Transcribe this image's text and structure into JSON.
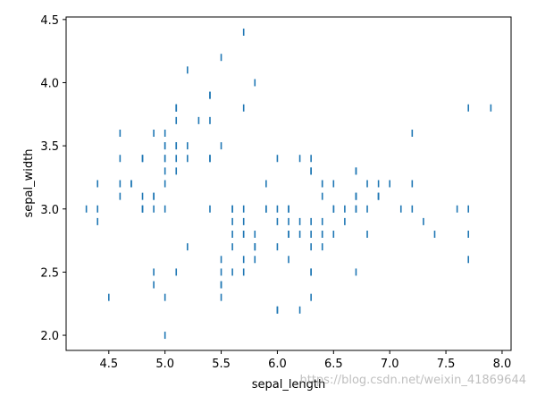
{
  "chart_data": {
    "type": "scatter",
    "marker": "vertical-line",
    "color": "#1f77b4",
    "xlabel": "sepal_length",
    "ylabel": "sepal_width",
    "xlim": [
      4.12,
      8.08
    ],
    "ylim": [
      1.88,
      4.52
    ],
    "xticks": [
      4.5,
      5.0,
      5.5,
      6.0,
      6.5,
      7.0,
      7.5,
      8.0
    ],
    "xtick_labels": [
      "4.5",
      "5.0",
      "5.5",
      "6.0",
      "6.5",
      "7.0",
      "7.5",
      "8.0"
    ],
    "yticks": [
      2.0,
      2.5,
      3.0,
      3.5,
      4.0,
      4.5
    ],
    "ytick_labels": [
      "2.0",
      "2.5",
      "3.0",
      "3.5",
      "4.0",
      "4.5"
    ],
    "grid": false,
    "points": [
      [
        5.1,
        3.5
      ],
      [
        4.9,
        3.0
      ],
      [
        4.7,
        3.2
      ],
      [
        4.6,
        3.1
      ],
      [
        5.0,
        3.6
      ],
      [
        5.4,
        3.9
      ],
      [
        4.6,
        3.4
      ],
      [
        5.0,
        3.4
      ],
      [
        4.4,
        2.9
      ],
      [
        4.9,
        3.1
      ],
      [
        5.4,
        3.7
      ],
      [
        4.8,
        3.4
      ],
      [
        4.8,
        3.0
      ],
      [
        4.3,
        3.0
      ],
      [
        5.8,
        4.0
      ],
      [
        5.7,
        4.4
      ],
      [
        5.4,
        3.9
      ],
      [
        5.1,
        3.5
      ],
      [
        5.7,
        3.8
      ],
      [
        5.1,
        3.8
      ],
      [
        5.4,
        3.4
      ],
      [
        5.1,
        3.7
      ],
      [
        4.6,
        3.6
      ],
      [
        5.1,
        3.3
      ],
      [
        4.8,
        3.4
      ],
      [
        5.0,
        3.0
      ],
      [
        5.0,
        3.4
      ],
      [
        5.2,
        3.5
      ],
      [
        5.2,
        3.4
      ],
      [
        4.7,
        3.2
      ],
      [
        4.8,
        3.1
      ],
      [
        5.4,
        3.4
      ],
      [
        5.2,
        4.1
      ],
      [
        5.5,
        4.2
      ],
      [
        4.9,
        3.1
      ],
      [
        5.0,
        3.2
      ],
      [
        5.5,
        3.5
      ],
      [
        4.9,
        3.6
      ],
      [
        4.4,
        3.0
      ],
      [
        5.1,
        3.4
      ],
      [
        5.0,
        3.5
      ],
      [
        4.5,
        2.3
      ],
      [
        4.4,
        3.2
      ],
      [
        5.0,
        3.5
      ],
      [
        5.1,
        3.8
      ],
      [
        4.8,
        3.0
      ],
      [
        5.1,
        3.8
      ],
      [
        4.6,
        3.2
      ],
      [
        5.3,
        3.7
      ],
      [
        5.0,
        3.3
      ],
      [
        7.0,
        3.2
      ],
      [
        6.4,
        3.2
      ],
      [
        6.9,
        3.1
      ],
      [
        5.5,
        2.3
      ],
      [
        6.5,
        2.8
      ],
      [
        5.7,
        2.8
      ],
      [
        6.3,
        3.3
      ],
      [
        4.9,
        2.4
      ],
      [
        6.6,
        2.9
      ],
      [
        5.2,
        2.7
      ],
      [
        5.0,
        2.0
      ],
      [
        5.9,
        3.0
      ],
      [
        6.0,
        2.2
      ],
      [
        6.1,
        2.9
      ],
      [
        5.6,
        2.9
      ],
      [
        6.7,
        3.1
      ],
      [
        5.6,
        3.0
      ],
      [
        5.8,
        2.7
      ],
      [
        6.2,
        2.2
      ],
      [
        5.6,
        2.5
      ],
      [
        5.9,
        3.2
      ],
      [
        6.1,
        2.8
      ],
      [
        6.3,
        2.5
      ],
      [
        6.1,
        2.8
      ],
      [
        6.4,
        2.9
      ],
      [
        6.6,
        3.0
      ],
      [
        6.8,
        2.8
      ],
      [
        6.7,
        3.0
      ],
      [
        6.0,
        2.9
      ],
      [
        5.7,
        2.6
      ],
      [
        5.5,
        2.4
      ],
      [
        5.5,
        2.4
      ],
      [
        5.8,
        2.7
      ],
      [
        6.0,
        2.7
      ],
      [
        5.4,
        3.0
      ],
      [
        6.0,
        3.4
      ],
      [
        6.7,
        3.1
      ],
      [
        6.3,
        2.3
      ],
      [
        5.6,
        3.0
      ],
      [
        5.5,
        2.5
      ],
      [
        5.5,
        2.6
      ],
      [
        6.1,
        3.0
      ],
      [
        5.8,
        2.6
      ],
      [
        5.0,
        2.3
      ],
      [
        5.6,
        2.7
      ],
      [
        5.7,
        3.0
      ],
      [
        5.7,
        2.9
      ],
      [
        6.2,
        2.9
      ],
      [
        5.1,
        2.5
      ],
      [
        5.7,
        2.8
      ],
      [
        6.3,
        3.3
      ],
      [
        5.8,
        2.7
      ],
      [
        7.1,
        3.0
      ],
      [
        6.3,
        2.9
      ],
      [
        6.5,
        3.0
      ],
      [
        7.6,
        3.0
      ],
      [
        4.9,
        2.5
      ],
      [
        7.3,
        2.9
      ],
      [
        6.7,
        2.5
      ],
      [
        7.2,
        3.6
      ],
      [
        6.5,
        3.2
      ],
      [
        6.4,
        2.7
      ],
      [
        6.8,
        3.0
      ],
      [
        5.7,
        2.5
      ],
      [
        5.8,
        2.8
      ],
      [
        6.4,
        3.2
      ],
      [
        6.5,
        3.0
      ],
      [
        7.7,
        3.8
      ],
      [
        7.7,
        2.6
      ],
      [
        6.0,
        2.2
      ],
      [
        6.9,
        3.2
      ],
      [
        5.6,
        2.8
      ],
      [
        7.7,
        2.8
      ],
      [
        6.3,
        2.7
      ],
      [
        6.7,
        3.3
      ],
      [
        7.2,
        3.2
      ],
      [
        6.2,
        2.8
      ],
      [
        6.1,
        3.0
      ],
      [
        6.4,
        2.8
      ],
      [
        7.2,
        3.0
      ],
      [
        7.4,
        2.8
      ],
      [
        7.9,
        3.8
      ],
      [
        6.4,
        2.8
      ],
      [
        6.3,
        2.8
      ],
      [
        6.1,
        2.6
      ],
      [
        7.7,
        3.0
      ],
      [
        6.3,
        3.4
      ],
      [
        6.4,
        3.1
      ],
      [
        6.0,
        3.0
      ],
      [
        6.9,
        3.1
      ],
      [
        6.7,
        3.1
      ],
      [
        6.9,
        3.1
      ],
      [
        5.8,
        2.7
      ],
      [
        6.8,
        3.2
      ],
      [
        6.7,
        3.3
      ],
      [
        6.7,
        3.0
      ],
      [
        6.3,
        2.5
      ],
      [
        6.5,
        3.0
      ],
      [
        6.2,
        3.4
      ],
      [
        5.9,
        3.0
      ]
    ]
  },
  "watermark": "https://blog.csdn.net/weixin_41869644"
}
